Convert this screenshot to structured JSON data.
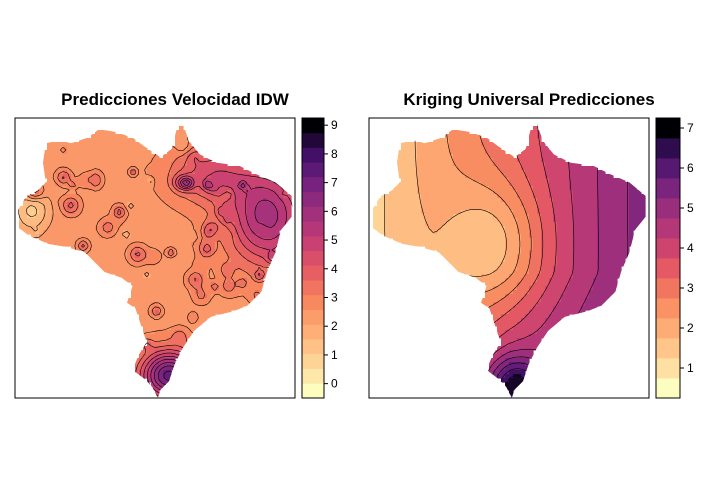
{
  "chart_data": [
    {
      "type": "heatmap",
      "title": "Predicciones Velocidad IDW",
      "xlabel": "",
      "ylabel": "",
      "colorbar": {
        "min": -0.5,
        "max": 9.25,
        "ticks": [
          0,
          1,
          2,
          3,
          4,
          5,
          6,
          7,
          8,
          9
        ],
        "tick_labels": [
          "0",
          "1",
          "2",
          "3",
          "4",
          "5",
          "6",
          "7",
          "8",
          "9"
        ],
        "levels": 19,
        "palette": "magma-reversed"
      },
      "contours": true,
      "description_of_field": "Mostly 2-3 across the center and west; ~1 in the far west; 5-7 along the northeast coast; 7-9 in the far south; many small local peaks."
    },
    {
      "type": "heatmap",
      "title": "Kriging Universal Predicciones",
      "xlabel": "",
      "ylabel": "",
      "colorbar": {
        "min": 0.25,
        "max": 7.25,
        "ticks": [
          1,
          2,
          3,
          4,
          5,
          6,
          7
        ],
        "tick_labels": [
          "1",
          "2",
          "3",
          "4",
          "5",
          "6",
          "7"
        ],
        "levels": 14,
        "palette": "magma-reversed"
      },
      "contours": true,
      "description_of_field": "Smooth gradient: ~1 in the far west, ~2 across the center, rising to 5-6 in the east and ~7 in the far south."
    }
  ]
}
